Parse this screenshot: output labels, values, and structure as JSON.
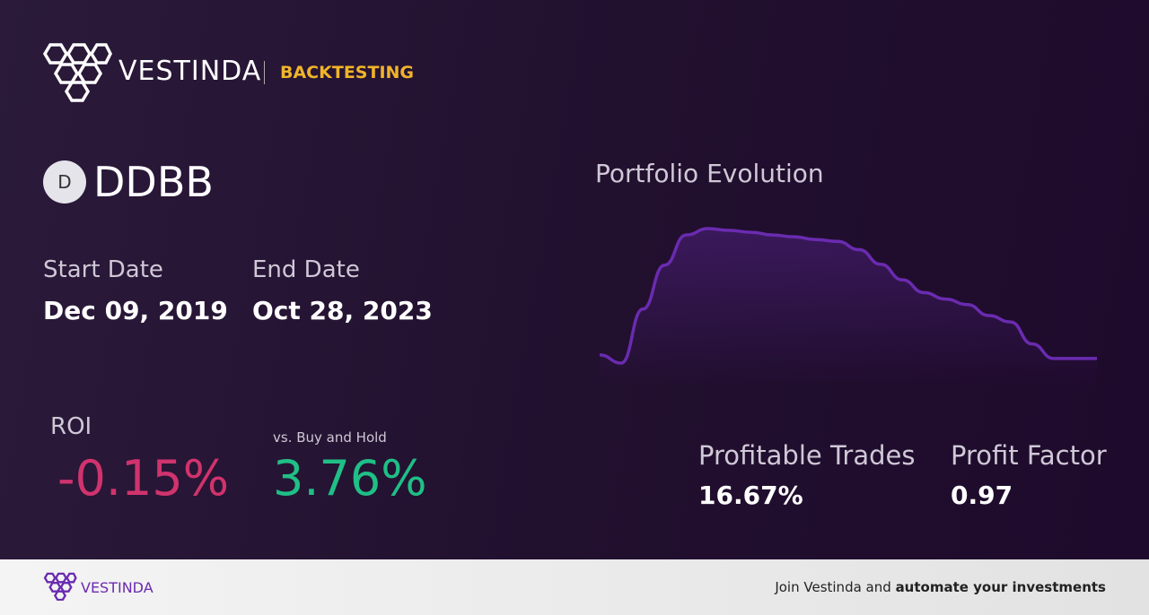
{
  "header": {
    "brand": "VESTINDA",
    "section": "BACKTESTING"
  },
  "asset": {
    "initial": "D",
    "ticker": "DDBB"
  },
  "dates": {
    "start_label": "Start Date",
    "start": "Dec 09, 2019",
    "end_label": "End Date",
    "end": "Oct 28, 2023"
  },
  "roi": {
    "label": "ROI",
    "value": "-0.15%",
    "compare_label": "vs. Buy and Hold",
    "compare_value": "3.76%"
  },
  "chart_data": {
    "type": "line",
    "title": "Portfolio Evolution",
    "color": "#6a2bb0",
    "values": [
      17,
      8,
      67,
      115,
      148,
      155,
      153,
      151,
      148,
      146,
      143,
      141,
      132,
      116,
      99,
      85,
      78,
      72,
      60,
      53,
      29,
      13,
      13,
      13
    ]
  },
  "stats": {
    "trades_label": "Profitable Trades",
    "trades": "16.67%",
    "factor_label": "Profit Factor",
    "factor": "0.97"
  },
  "footer": {
    "brand": "VESTINDA",
    "cta_start": "Join Vestinda and",
    "cta_bold": "automate your investments"
  }
}
